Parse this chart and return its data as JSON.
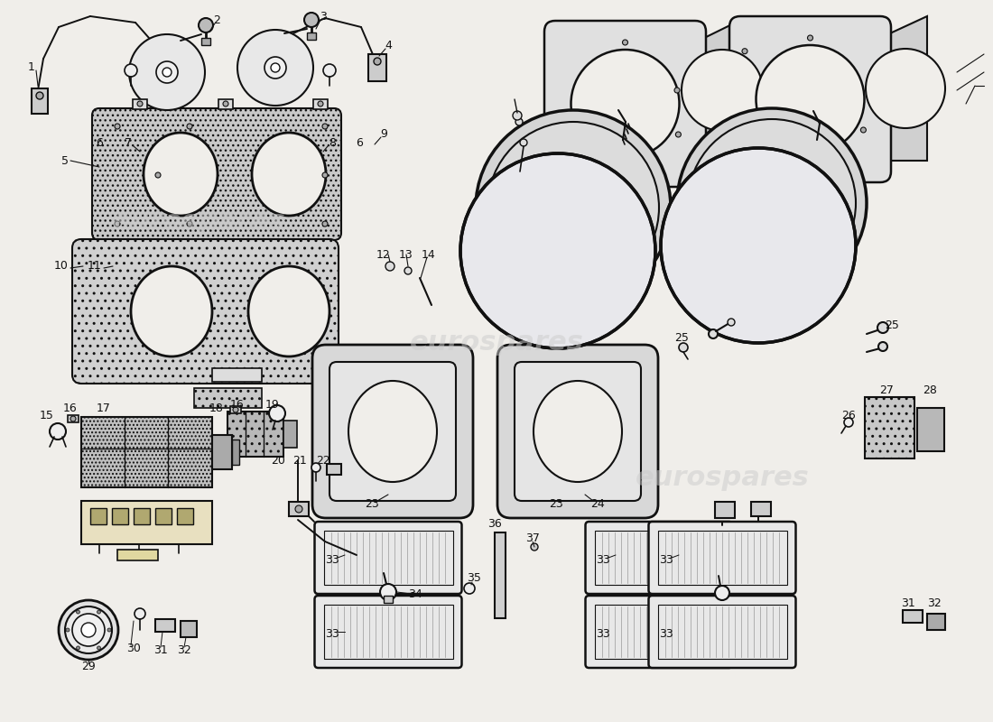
{
  "bg": "#f0eeea",
  "lc": "#111111",
  "wm1": "eurospares",
  "wm_color": "#cccccc",
  "wm_alpha": 0.5,
  "fig_w": 11.0,
  "fig_h": 8.0,
  "dpi": 100
}
